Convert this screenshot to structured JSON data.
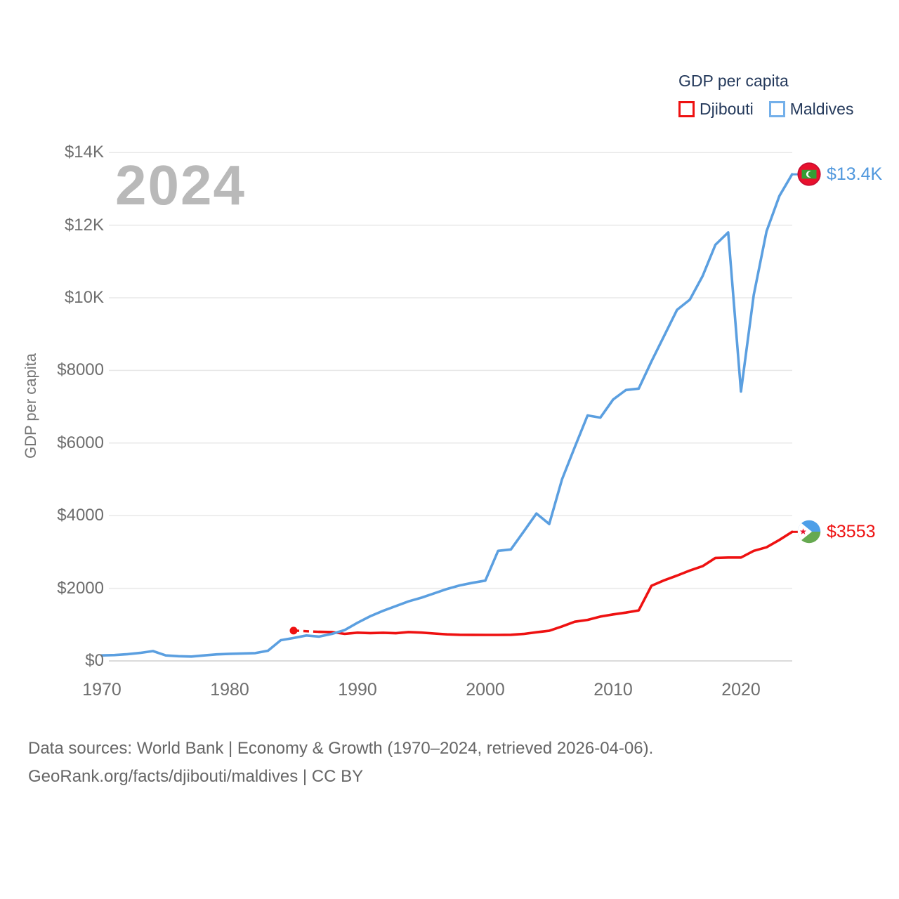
{
  "watermark": "2024",
  "legend": {
    "title": "GDP per capita",
    "items": [
      {
        "label": "Djibouti",
        "color": "#ee1111"
      },
      {
        "label": "Maldives",
        "color": "#74b0ea"
      }
    ]
  },
  "y_axis": {
    "title": "GDP per capita",
    "ticks": [
      "$14K",
      "$12K",
      "$10K",
      "$8000",
      "$6000",
      "$4000",
      "$2000",
      "$0"
    ],
    "tick_values": [
      14000,
      12000,
      10000,
      8000,
      6000,
      4000,
      2000,
      0
    ]
  },
  "x_axis": {
    "ticks": [
      "1970",
      "1980",
      "1990",
      "2000",
      "2010",
      "2020"
    ],
    "tick_values": [
      1970,
      1980,
      1990,
      2000,
      2010,
      2020
    ]
  },
  "end_labels": [
    {
      "series": "Maldives",
      "text": "$13.4K",
      "color": "#4f97dd",
      "flag_icon": "maldives-flag-icon"
    },
    {
      "series": "Djibouti",
      "text": "$3553",
      "color": "#ee1111",
      "flag_icon": "djibouti-flag-icon"
    }
  ],
  "icons": {
    "flags": [
      "maldives-flag-icon",
      "djibouti-flag-icon"
    ],
    "legend_swatches": [
      "djibouti-swatch-icon",
      "maldives-swatch-icon"
    ]
  },
  "colors": {
    "djibouti_line": "#ee1111",
    "maldives_line": "#5b9fe0",
    "gridline": "#e8e8e8",
    "zero_line": "#cfcfcf",
    "tick_text": "#6e6e6e",
    "legend_text": "#24395b",
    "watermark": "#b9b9b9",
    "footer_text": "#666666"
  },
  "footer": {
    "line1": "Data sources: World Bank | Economy & Growth (1970–2024, retrieved 2026-04-06).",
    "line2": "GeoRank.org/facts/djibouti/maldives | CC BY"
  },
  "chart_data": {
    "type": "line",
    "title": "GDP per capita",
    "xlabel": "",
    "ylabel": "GDP per capita",
    "xlim": [
      1969,
      2025
    ],
    "ylim": [
      0,
      14500
    ],
    "grid": true,
    "legend_position": "top-right",
    "series": [
      {
        "name": "Djibouti",
        "color": "#ee1111",
        "leading_gap_dashed": true,
        "x": [
          1985,
          1987,
          1988,
          1989,
          1990,
          1991,
          1992,
          1993,
          1994,
          1995,
          1996,
          1997,
          1998,
          1999,
          2000,
          2001,
          2002,
          2003,
          2004,
          2005,
          2006,
          2007,
          2008,
          2009,
          2010,
          2011,
          2012,
          2013,
          2014,
          2015,
          2016,
          2017,
          2018,
          2019,
          2020,
          2021,
          2022,
          2023,
          2024
        ],
        "values": [
          835,
          800,
          795,
          745,
          778,
          765,
          775,
          763,
          795,
          780,
          755,
          732,
          720,
          717,
          715,
          716,
          720,
          742,
          790,
          830,
          950,
          1080,
          1130,
          1220,
          1280,
          1330,
          1390,
          2070,
          2220,
          2350,
          2490,
          2610,
          2835,
          2848,
          2848,
          3030,
          3130,
          3330,
          3553
        ]
      },
      {
        "name": "Maldives",
        "color": "#5b9fe0",
        "leading_gap_dashed": false,
        "x": [
          1970,
          1971,
          1972,
          1973,
          1974,
          1975,
          1976,
          1977,
          1978,
          1979,
          1980,
          1981,
          1982,
          1983,
          1984,
          1985,
          1986,
          1987,
          1988,
          1989,
          1990,
          1991,
          1992,
          1993,
          1994,
          1995,
          1996,
          1997,
          1998,
          1999,
          2000,
          2001,
          2002,
          2003,
          2004,
          2005,
          2006,
          2007,
          2008,
          2009,
          2010,
          2011,
          2012,
          2013,
          2014,
          2015,
          2016,
          2017,
          2018,
          2019,
          2020,
          2021,
          2022,
          2023,
          2024
        ],
        "values": [
          150,
          160,
          185,
          220,
          270,
          150,
          130,
          120,
          150,
          180,
          195,
          205,
          215,
          280,
          570,
          630,
          700,
          670,
          745,
          850,
          1050,
          1230,
          1380,
          1510,
          1640,
          1740,
          1860,
          1980,
          2080,
          2150,
          2210,
          3030,
          3070,
          3560,
          4060,
          3770,
          5000,
          5890,
          6760,
          6700,
          7200,
          7460,
          7500,
          8250,
          8960,
          9670,
          9950,
          10600,
          11460,
          11800,
          7420,
          10080,
          11830,
          12800,
          13400
        ]
      }
    ]
  }
}
